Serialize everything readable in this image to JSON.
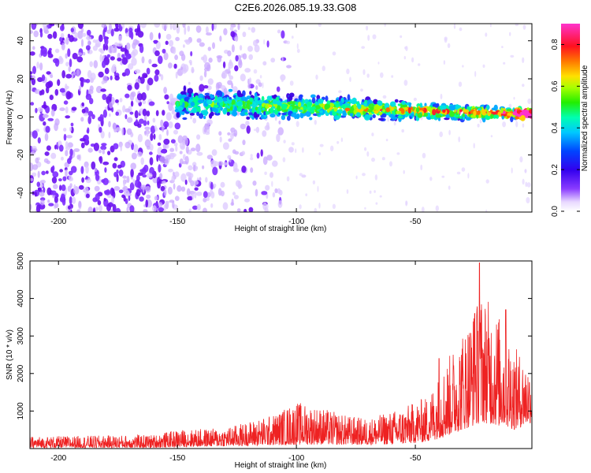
{
  "title": "C2E6.2026.085.19.33.G08",
  "colors": {
    "snr_line": "#ee2222",
    "axis": "#000000"
  },
  "chart_data": [
    {
      "type": "heatmap",
      "title": "C2E6.2026.085.19.33.G08",
      "xlabel": "Height of straight line (km)",
      "ylabel": "Frequency (Hz)",
      "xlim": [
        -212,
        -1
      ],
      "ylim": [
        -50,
        49
      ],
      "x_ticks": [
        -200,
        -150,
        -100,
        -50
      ],
      "y_ticks": [
        -40,
        -20,
        0,
        20,
        40
      ],
      "colorbar": {
        "label": "Normalized spectral amplitude",
        "range": [
          0.0,
          0.9
        ],
        "ticks": [
          "0.0",
          "0.2",
          "0.4",
          "0.6",
          "0.8"
        ],
        "colormap": "rainbow (purple-blue-cyan-green-yellow-red-magenta)"
      },
      "signal_ridge": {
        "start_km": -150,
        "end_km": -1,
        "frequency_hz_start": 7,
        "frequency_hz_end": 1.5
      },
      "noise_region_km": [
        -212,
        -120
      ]
    },
    {
      "type": "line",
      "xlabel": "Height of straight line (km)",
      "ylabel": "SNR (10 * v/v)",
      "xlim": [
        -212,
        -1
      ],
      "ylim": [
        0,
        5000
      ],
      "x_ticks": [
        -200,
        -150,
        -100,
        -50
      ],
      "y_ticks": [
        1000,
        2000,
        3000,
        4000,
        5000
      ],
      "envelope": [
        {
          "x": -212,
          "low": 20,
          "high": 320
        },
        {
          "x": -160,
          "low": 20,
          "high": 370
        },
        {
          "x": -150,
          "low": 40,
          "high": 500
        },
        {
          "x": -130,
          "low": 60,
          "high": 550
        },
        {
          "x": -110,
          "low": 90,
          "high": 900
        },
        {
          "x": -100,
          "low": 100,
          "high": 1250
        },
        {
          "x": -90,
          "low": 110,
          "high": 1100
        },
        {
          "x": -80,
          "low": 100,
          "high": 900
        },
        {
          "x": -70,
          "low": 100,
          "high": 800
        },
        {
          "x": -55,
          "low": 120,
          "high": 1100
        },
        {
          "x": -45,
          "low": 180,
          "high": 1400
        },
        {
          "x": -38,
          "low": 300,
          "high": 2200
        },
        {
          "x": -30,
          "low": 500,
          "high": 3200
        },
        {
          "x": -22,
          "low": 700,
          "high": 4200
        },
        {
          "x": -15,
          "low": 600,
          "high": 3600
        },
        {
          "x": -8,
          "low": 500,
          "high": 2700
        },
        {
          "x": -1,
          "low": 700,
          "high": 2200
        }
      ],
      "peaks": [
        {
          "x": -23,
          "y": 4950
        },
        {
          "x": -25,
          "y": 3600
        },
        {
          "x": -12,
          "y": 3700
        },
        {
          "x": -40,
          "y": 2400
        }
      ]
    }
  ]
}
